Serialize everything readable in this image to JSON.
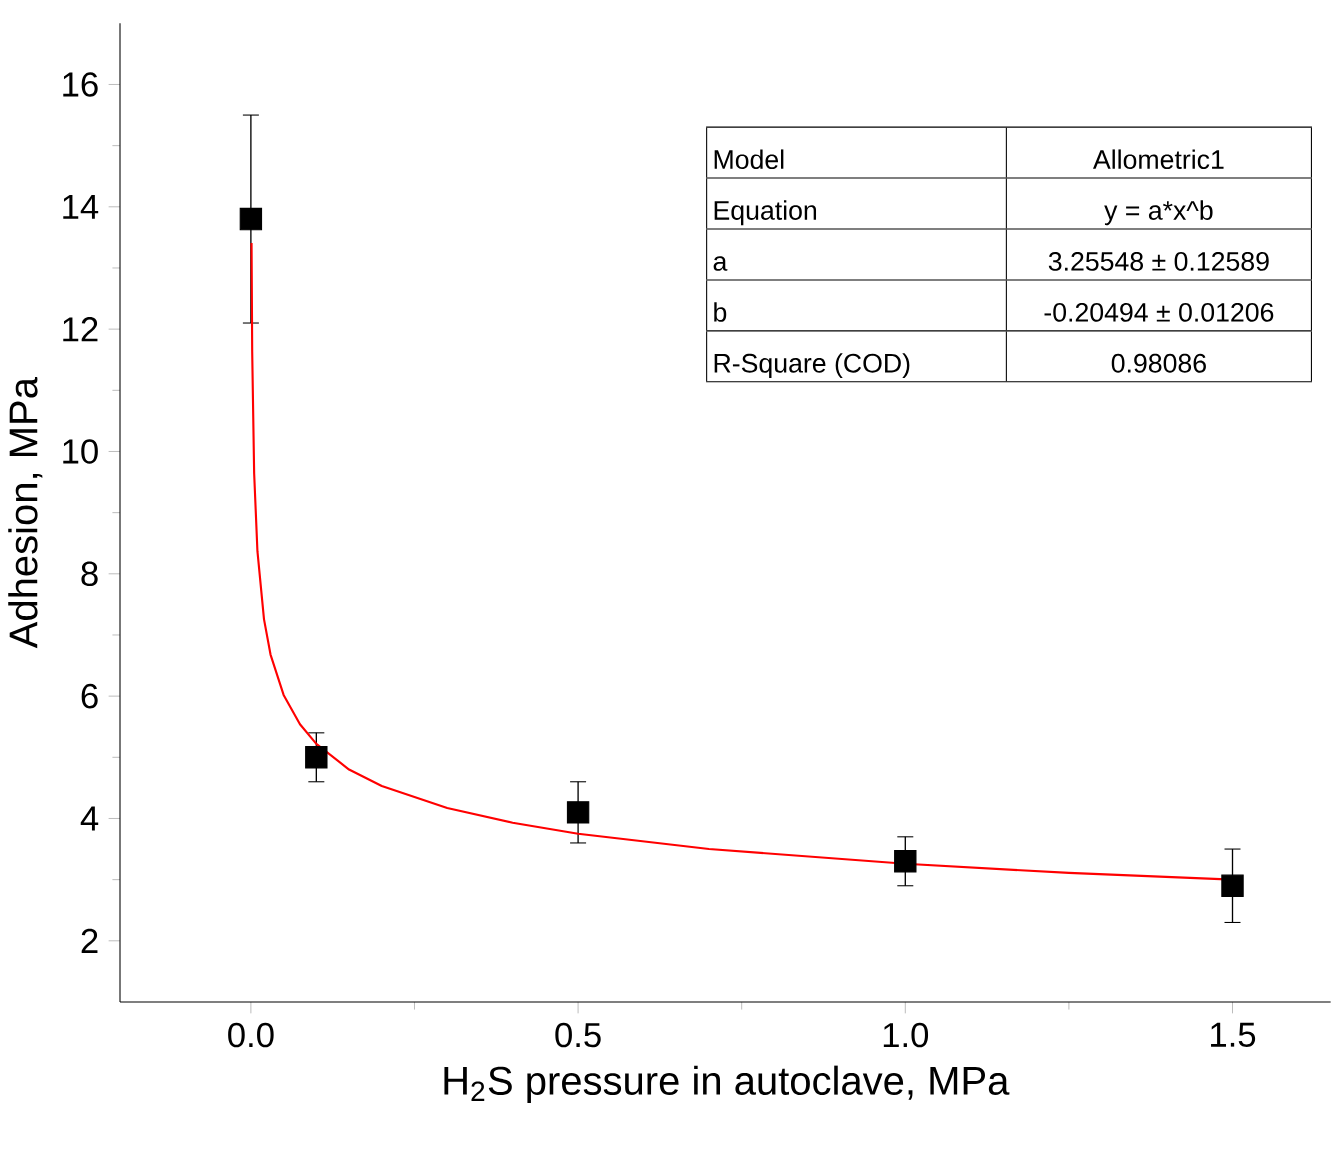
{
  "chart_data": {
    "type": "scatter",
    "xlabel": "H$_{2}$S pressure in autoclave, MPa",
    "ylabel": "Adhesion, MPa",
    "xlim": [
      -0.2,
      1.65
    ],
    "ylim": [
      1,
      17
    ],
    "xticks": [
      {
        "value": 0,
        "label": "0.0"
      },
      {
        "value": 0.5,
        "label": "0.5"
      },
      {
        "value": 1,
        "label": "1.0"
      },
      {
        "value": 1.5,
        "label": "1.5"
      }
    ],
    "yticks": [
      2,
      4,
      6,
      8,
      10,
      12,
      14,
      16
    ],
    "grid": false,
    "series": [
      {
        "type": "scatter",
        "color": "#000000",
        "marker": "square",
        "x": [
          0,
          0.1,
          0.5,
          1.0,
          1.5
        ],
        "values": [
          13.8,
          5.0,
          4.1,
          3.3,
          2.9
        ],
        "errors": [
          [
            12.1,
            15.5
          ],
          [
            4.6,
            5.4
          ],
          [
            3.6,
            4.6
          ],
          [
            2.9,
            3.7
          ],
          [
            2.3,
            3.5
          ]
        ]
      },
      {
        "type": "line",
        "color": "#ff0000",
        "marker": "none",
        "x": [
          0.001,
          0.002,
          0.005,
          0.01,
          0.02,
          0.03,
          0.05,
          0.075,
          0.1,
          0.15,
          0.2,
          0.3,
          0.4,
          0.5,
          0.7,
          1.0,
          1.25,
          1.5
        ],
        "values": [
          13.41,
          11.63,
          9.64,
          8.37,
          7.26,
          6.68,
          6.02,
          5.54,
          5.22,
          4.8,
          4.53,
          4.17,
          3.93,
          3.75,
          3.5,
          3.26,
          3.11,
          3.0
        ]
      }
    ],
    "annotations": [
      "Model",
      "Allometric1",
      "Equation",
      "y = a*x^b",
      "a",
      "3.25548 ± 0.12589",
      "b",
      "-0.20494 ± 0.01206",
      "R-Square (COD)",
      "0.98086"
    ]
  }
}
